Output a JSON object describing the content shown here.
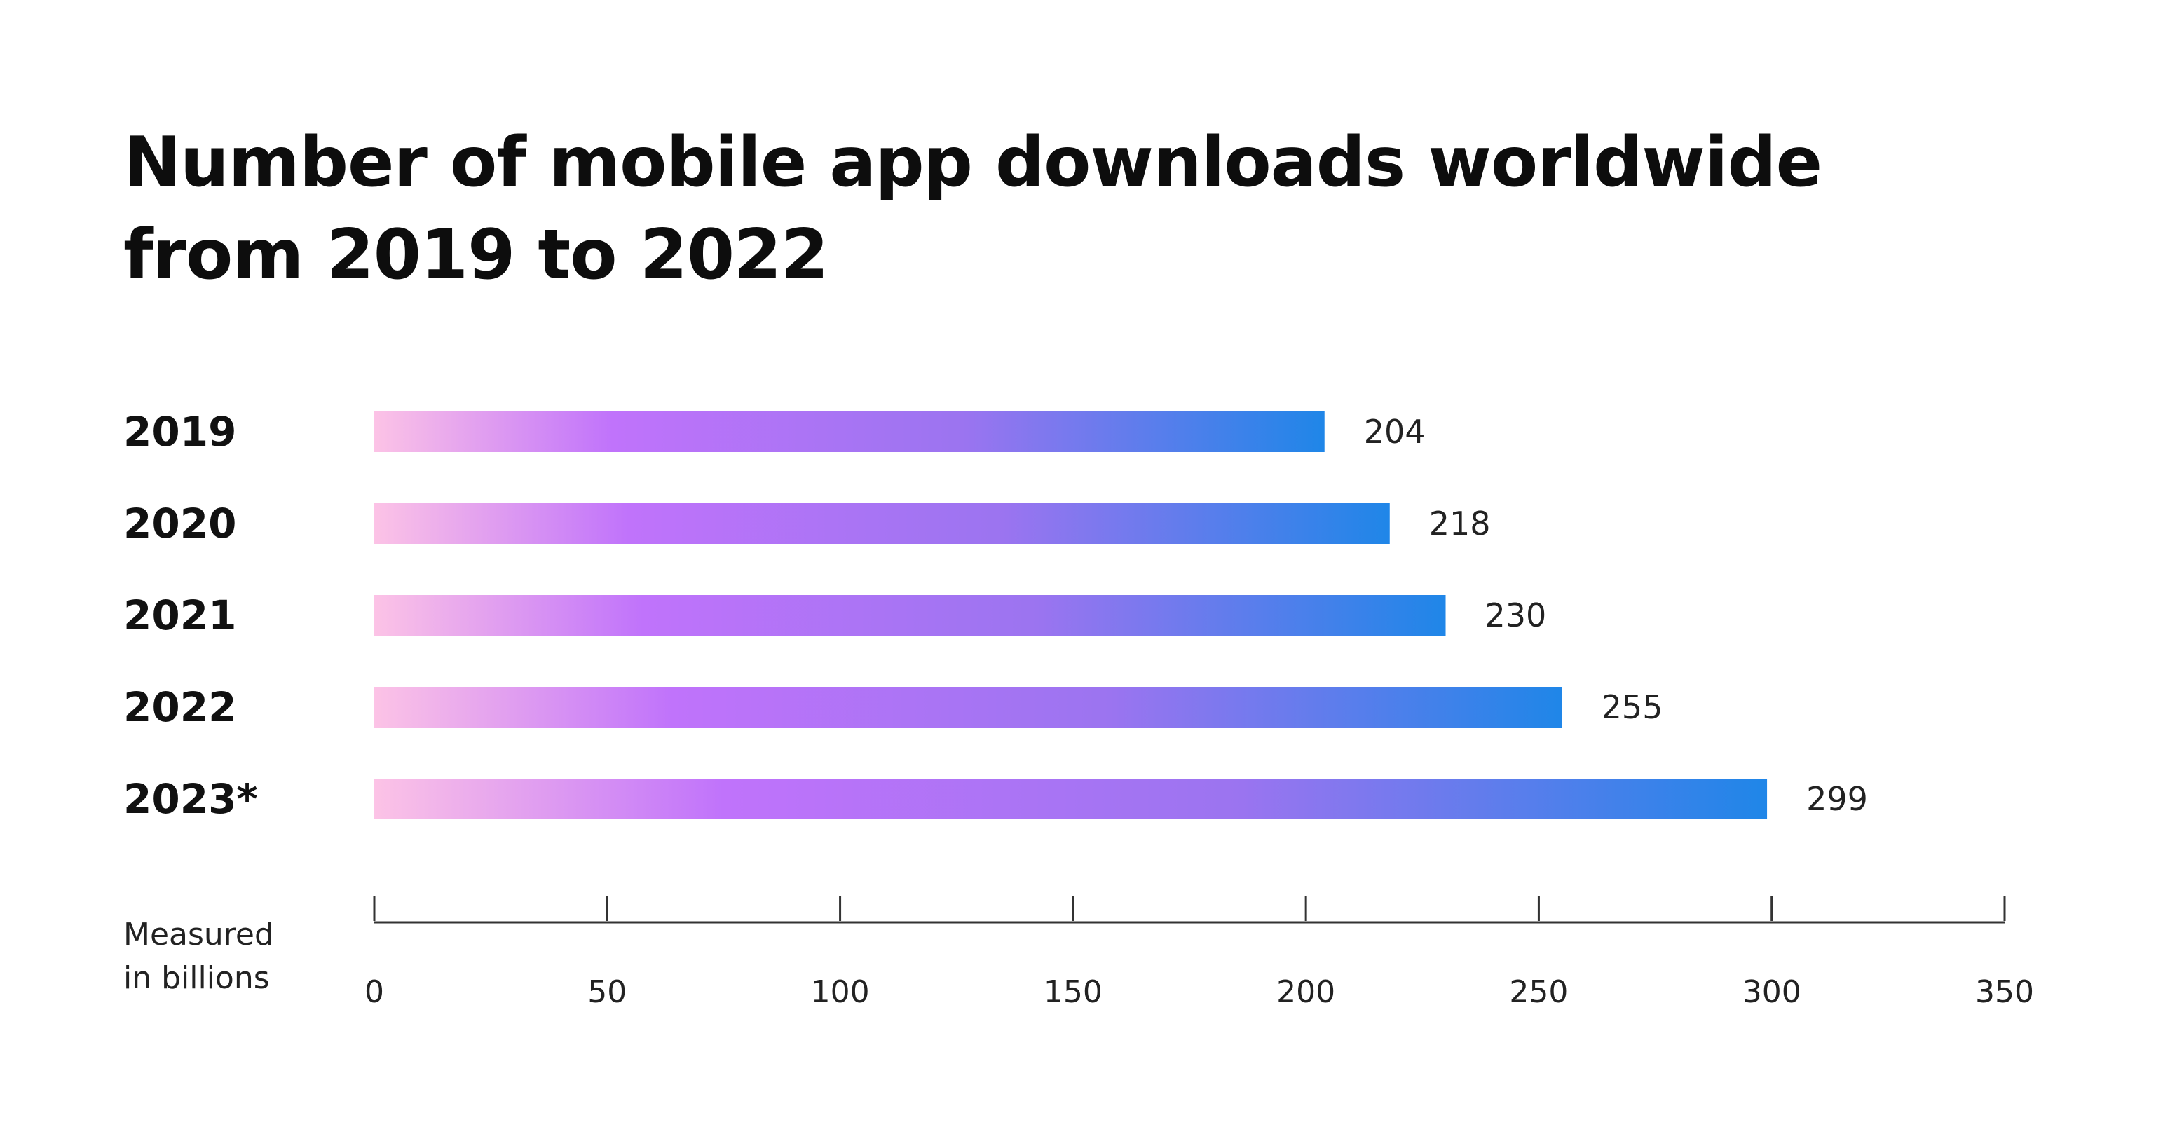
{
  "title": {
    "line1": "Number of mobile app downloads worldwide",
    "line2": "from 2019 to 2022"
  },
  "colors": {
    "gradient": [
      "#fcc3e6",
      "#c073fb",
      "#9b74f0",
      "#1f86e8"
    ],
    "text": "#111111",
    "axis": "#333333"
  },
  "chart_data": {
    "type": "bar",
    "orientation": "horizontal",
    "title": "Number of mobile app downloads worldwide from 2019 to 2022",
    "categories": [
      "2019",
      "2020",
      "2021",
      "2022",
      "2023*"
    ],
    "values": [
      204,
      218,
      230,
      255,
      299
    ],
    "value_labels": [
      "204",
      "218",
      "230",
      "255",
      "299"
    ],
    "xlim": [
      0,
      350
    ],
    "x_ticks": [
      0,
      50,
      100,
      150,
      200,
      250,
      300,
      350
    ],
    "x_tick_labels": [
      "0",
      "50",
      "100",
      "150",
      "200",
      "250",
      "300",
      "350"
    ],
    "unit_label": [
      "Measured",
      "in billions"
    ],
    "grid": false,
    "legend": "none"
  }
}
